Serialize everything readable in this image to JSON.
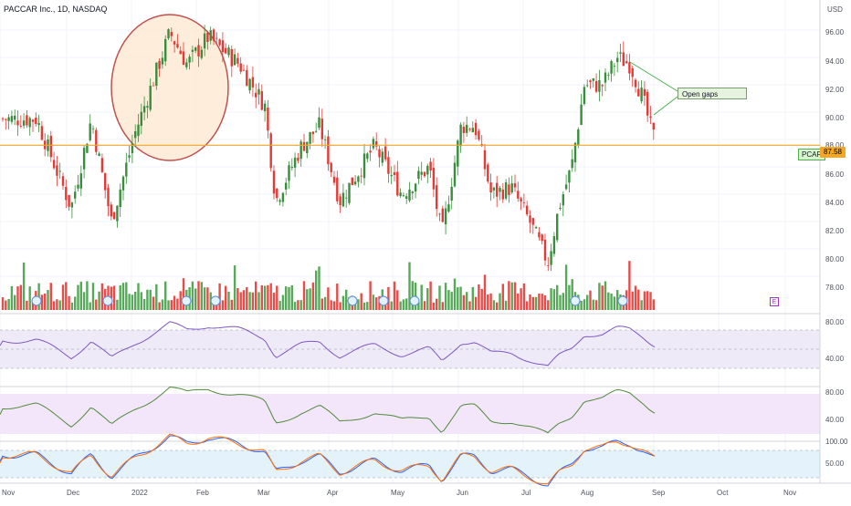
{
  "header": {
    "title": "PACCAR Inc., 1D, NASDAQ"
  },
  "price_axis": {
    "currency": "USD",
    "ticks": [
      "96.00",
      "94.00",
      "92.00",
      "90.00",
      "88.00",
      "86.00",
      "84.00",
      "82.00",
      "80.00",
      "78.00"
    ]
  },
  "time_axis": {
    "labels": [
      "Nov",
      "Dec",
      "2022",
      "Feb",
      "Mar",
      "Apr",
      "May",
      "Jun",
      "Jul",
      "Aug",
      "Sep",
      "Oct",
      "Nov"
    ]
  },
  "last_price": {
    "value": "87.58",
    "ticker": "PCAR"
  },
  "annotation": {
    "text": "Open gaps"
  },
  "markers": {
    "earnings": "E"
  },
  "indicators": {
    "rsi": {
      "ticks": [
        "80.00",
        "40.00"
      ]
    },
    "second": {
      "ticks": [
        "80.00",
        "40.00"
      ]
    },
    "stoch": {
      "ticks": [
        "100.00",
        "50.00"
      ]
    }
  },
  "colors": {
    "up": "#388e3c",
    "down": "#e53935",
    "accent": "#f5a623",
    "rsi": "#7e57c2",
    "stoch_k": "#2962ff",
    "stoch_d": "#ff6d00"
  },
  "chart_data": {
    "type": "candlestick",
    "title": "PACCAR Inc., 1D, NASDAQ",
    "ylim": [
      77,
      97
    ],
    "horizontal_level": 87.58,
    "x": [
      "2021-11",
      "2021-12",
      "2022-01",
      "2022-02",
      "2022-03",
      "2022-04",
      "2022-05",
      "2022-06",
      "2022-07",
      "2022-08",
      "2022-08-31"
    ],
    "close": [
      89.5,
      86.0,
      88.5,
      94.0,
      86.0,
      84.0,
      86.5,
      89.0,
      80.0,
      93.5,
      87.58
    ]
  }
}
